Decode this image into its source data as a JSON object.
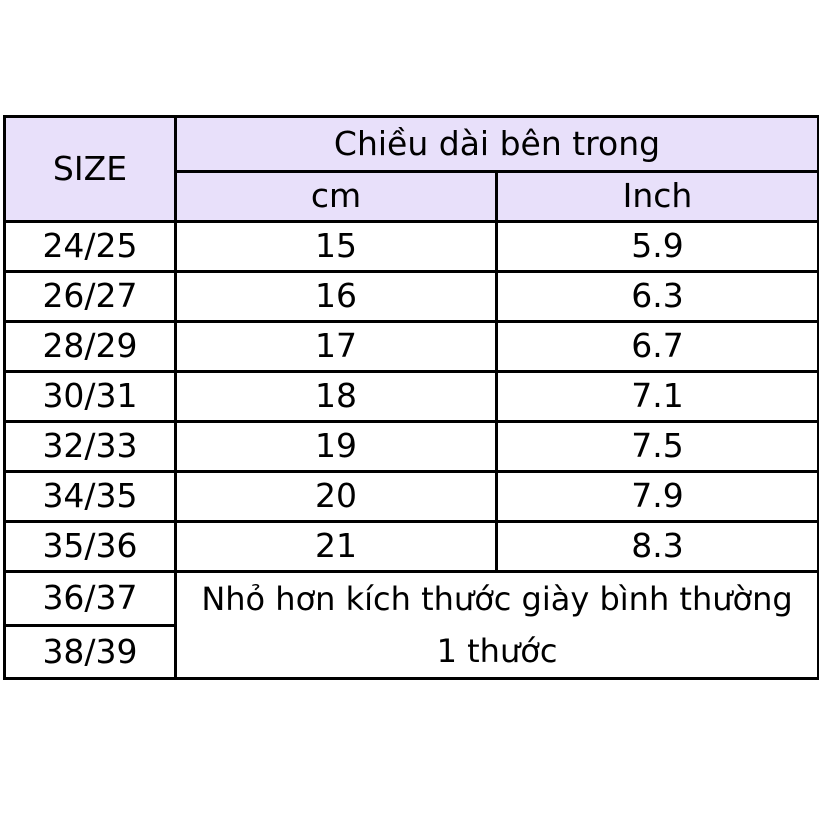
{
  "header": {
    "size_label": "SIZE",
    "group_label": "Chiều dài bên trong",
    "cm_label": "cm",
    "inch_label": "Inch"
  },
  "colors": {
    "header_bg": "#e8e0fa",
    "border": "#000000"
  },
  "rows": [
    {
      "size": "24/25",
      "cm": "15",
      "inch": "5.9"
    },
    {
      "size": "26/27",
      "cm": "16",
      "inch": "6.3"
    },
    {
      "size": "28/29",
      "cm": "17",
      "inch": "6.7"
    },
    {
      "size": "30/31",
      "cm": "18",
      "inch": "7.1"
    },
    {
      "size": "32/33",
      "cm": "19",
      "inch": "7.5"
    },
    {
      "size": "34/35",
      "cm": "20",
      "inch": "7.9"
    },
    {
      "size": "35/36",
      "cm": "21",
      "inch": "8.3"
    }
  ],
  "note_rows": [
    {
      "size": "36/37"
    },
    {
      "size": "38/39"
    }
  ],
  "note": {
    "line1": "Nhỏ hơn kích thước giày bình thường",
    "line2": "1 thước"
  }
}
